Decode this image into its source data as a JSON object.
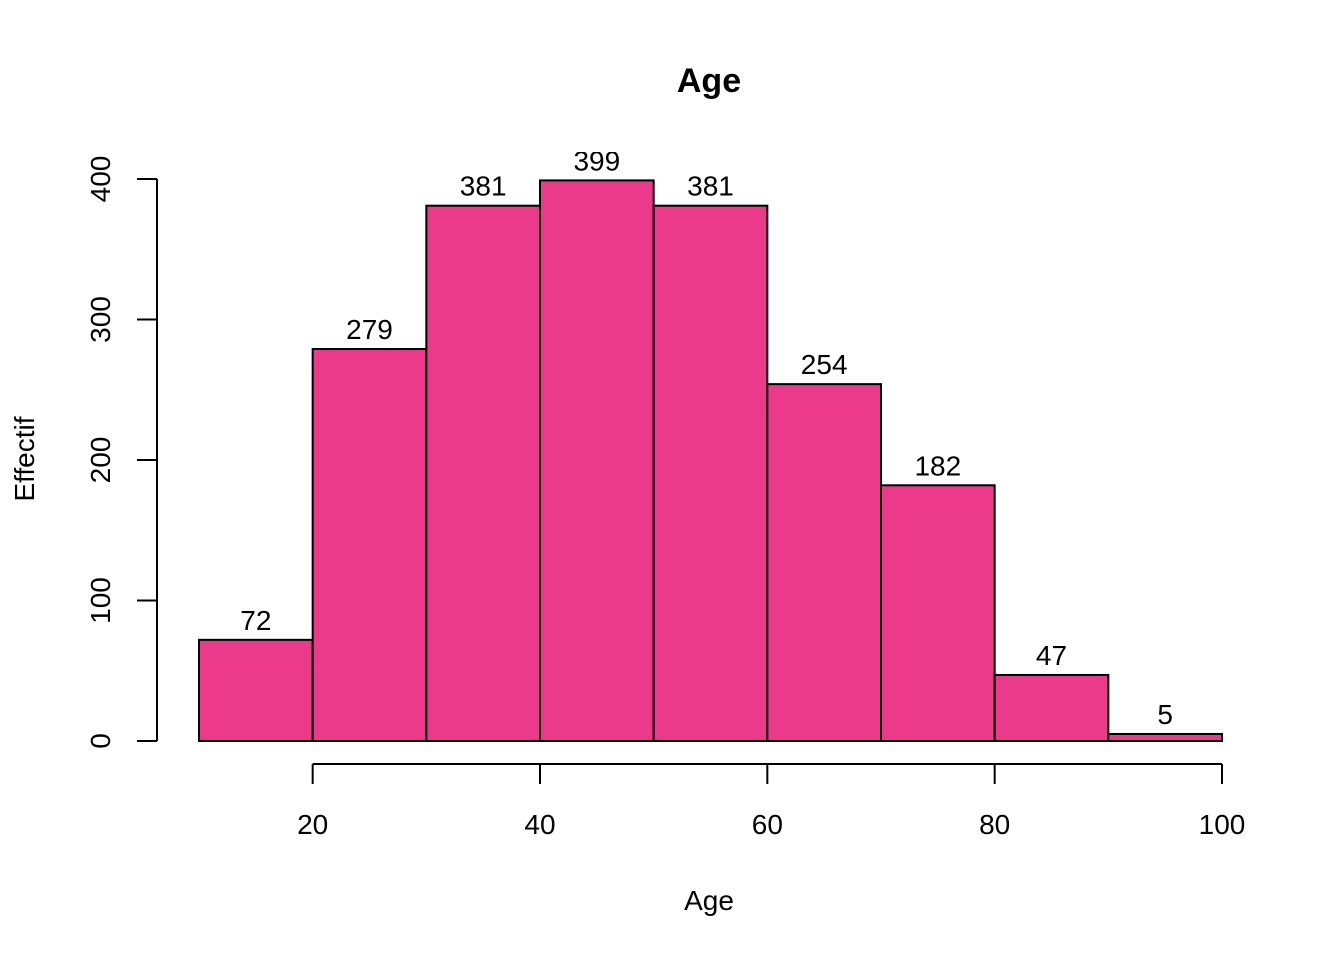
{
  "chart_data": {
    "type": "bar",
    "title": "Age",
    "xlabel": "Age",
    "ylabel": "Effectif",
    "bins": [
      {
        "start": 10,
        "end": 20,
        "count": 72
      },
      {
        "start": 20,
        "end": 30,
        "count": 279
      },
      {
        "start": 30,
        "end": 40,
        "count": 381
      },
      {
        "start": 40,
        "end": 50,
        "count": 399
      },
      {
        "start": 50,
        "end": 60,
        "count": 381
      },
      {
        "start": 60,
        "end": 70,
        "count": 254
      },
      {
        "start": 70,
        "end": 80,
        "count": 182
      },
      {
        "start": 80,
        "end": 90,
        "count": 47
      },
      {
        "start": 90,
        "end": 100,
        "count": 5
      }
    ],
    "data_labels": [
      "72",
      "279",
      "381",
      "399",
      "381",
      "254",
      "182",
      "47",
      "5"
    ],
    "x_ticks": [
      20,
      40,
      60,
      80,
      100
    ],
    "x_tick_labels": [
      "20",
      "40",
      "60",
      "80",
      "100"
    ],
    "y_ticks": [
      0,
      100,
      200,
      300,
      400
    ],
    "y_tick_labels": [
      "0",
      "100",
      "200",
      "300",
      "400"
    ],
    "xlim": [
      10,
      100
    ],
    "ylim": [
      0,
      400
    ],
    "bar_color": "#EC3A8A",
    "bar_border_color": "#000000",
    "grid": false,
    "legend": "none"
  }
}
